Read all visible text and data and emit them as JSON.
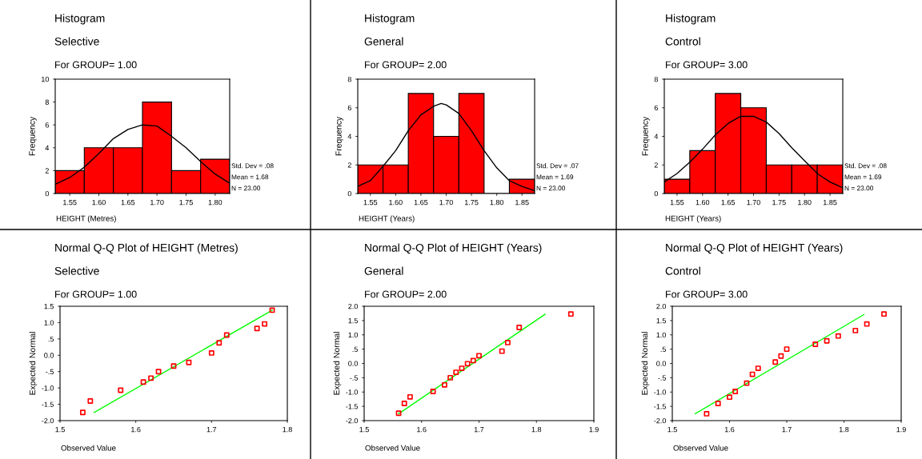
{
  "chart_data": [
    {
      "type": "histogram",
      "title": "Histogram",
      "subtitle": "Selective",
      "xlabel": "HEIGHT (Metres)",
      "ylabel": "Frequency",
      "annotations": [
        "For GROUP= 1.00",
        "Std. Dev = .08",
        "Mean = 1.68",
        "N = 23.00"
      ],
      "bins": [
        1.525,
        1.575,
        1.625,
        1.675,
        1.725,
        1.775,
        1.825
      ],
      "values": [
        2,
        4,
        4,
        8,
        2,
        3
      ],
      "color": "#ff0000",
      "series": [
        {
          "type": "line",
          "color": "#000000",
          "x": [
            1.525,
            1.55,
            1.575,
            1.6,
            1.625,
            1.65,
            1.675,
            1.7,
            1.725,
            1.75,
            1.775,
            1.8,
            1.825
          ],
          "values": [
            0.8,
            1.4,
            2.3,
            3.5,
            4.8,
            5.6,
            6.0,
            5.9,
            5.0,
            4.0,
            2.8,
            1.7,
            0.9
          ]
        }
      ],
      "xlim": [
        1.525,
        1.825
      ],
      "xticks": [
        {
          "value": 1.55,
          "label": "1.55"
        },
        {
          "value": 1.6,
          "label": "1.60"
        },
        {
          "value": 1.65,
          "label": "1.65"
        },
        {
          "value": 1.7,
          "label": "1.70"
        },
        {
          "value": 1.75,
          "label": "1.75"
        },
        {
          "value": 1.8,
          "label": "1.80"
        }
      ],
      "ylim": [
        0,
        10
      ],
      "yticks": [
        0,
        2,
        4,
        6,
        8,
        10
      ]
    },
    {
      "type": "histogram",
      "title": "Histogram",
      "subtitle": "General",
      "xlabel": "HEIGHT (Years)",
      "ylabel": "Frequency",
      "annotations": [
        "For GROUP= 2.00",
        "Std. Dev = .07",
        "Mean = 1.69",
        "N = 23.00"
      ],
      "bins": [
        1.525,
        1.575,
        1.625,
        1.675,
        1.725,
        1.775,
        1.825,
        1.875
      ],
      "values": [
        2,
        2,
        7,
        4,
        7,
        0,
        1
      ],
      "color": "#ff0000",
      "series": [
        {
          "type": "line",
          "color": "#000000",
          "x": [
            1.525,
            1.55,
            1.575,
            1.6,
            1.625,
            1.65,
            1.675,
            1.69,
            1.7,
            1.725,
            1.75,
            1.775,
            1.8,
            1.825,
            1.85,
            1.875
          ],
          "values": [
            0.5,
            0.9,
            1.9,
            3.0,
            4.4,
            5.5,
            6.1,
            6.3,
            6.2,
            5.6,
            4.4,
            3.0,
            1.8,
            0.9,
            0.5,
            0.2
          ]
        }
      ],
      "xlim": [
        1.525,
        1.875
      ],
      "xticks": [
        {
          "value": 1.55,
          "label": "1.55"
        },
        {
          "value": 1.6,
          "label": "1.60"
        },
        {
          "value": 1.65,
          "label": "1.65"
        },
        {
          "value": 1.7,
          "label": "1.70"
        },
        {
          "value": 1.75,
          "label": "1.75"
        },
        {
          "value": 1.8,
          "label": "1.80"
        },
        {
          "value": 1.85,
          "label": "1.85"
        }
      ],
      "ylim": [
        0,
        8
      ],
      "yticks": [
        0,
        2,
        4,
        6,
        8
      ]
    },
    {
      "type": "histogram",
      "title": "Histogram",
      "subtitle": "Control",
      "xlabel": "HEIGHT (Years)",
      "ylabel": "Frequency",
      "annotations": [
        "For GROUP= 3.00",
        "Std. Dev = .08",
        "Mean = 1.69",
        "N = 23.00"
      ],
      "bins": [
        1.525,
        1.575,
        1.625,
        1.675,
        1.725,
        1.775,
        1.825,
        1.875
      ],
      "values": [
        1,
        3,
        7,
        6,
        2,
        2,
        2
      ],
      "color": "#ff0000",
      "series": [
        {
          "type": "line",
          "color": "#000000",
          "x": [
            1.525,
            1.55,
            1.575,
            1.6,
            1.625,
            1.65,
            1.675,
            1.69,
            1.7,
            1.725,
            1.75,
            1.775,
            1.8,
            1.825,
            1.85,
            1.875
          ],
          "values": [
            0.8,
            1.4,
            2.2,
            3.1,
            4.1,
            4.9,
            5.4,
            5.4,
            5.4,
            5.0,
            4.2,
            3.2,
            2.3,
            1.4,
            0.8,
            0.4
          ]
        }
      ],
      "xlim": [
        1.525,
        1.875
      ],
      "xticks": [
        {
          "value": 1.55,
          "label": "1.55"
        },
        {
          "value": 1.6,
          "label": "1.60"
        },
        {
          "value": 1.65,
          "label": "1.65"
        },
        {
          "value": 1.7,
          "label": "1.70"
        },
        {
          "value": 1.75,
          "label": "1.75"
        },
        {
          "value": 1.8,
          "label": "1.80"
        },
        {
          "value": 1.85,
          "label": "1.85"
        }
      ],
      "ylim": [
        0,
        8
      ],
      "yticks": [
        0,
        2,
        4,
        6,
        8
      ]
    },
    {
      "type": "scatter",
      "title": "Normal Q-Q Plot of HEIGHT (Metres)",
      "subtitle": "Selective",
      "xlabel": "Observed Value",
      "ylabel": "Expected Normal",
      "annotations": [
        "For GROUP= 1.00"
      ],
      "series": [
        {
          "type": "scatter",
          "color": "#ff0000",
          "marker": "square",
          "x": [
            1.53,
            1.54,
            1.58,
            1.61,
            1.62,
            1.63,
            1.65,
            1.67,
            1.7,
            1.71,
            1.72,
            1.76,
            1.77,
            1.78
          ],
          "values": [
            -1.75,
            -1.4,
            -1.07,
            -0.82,
            -0.7,
            -0.5,
            -0.33,
            -0.22,
            0.07,
            0.38,
            0.62,
            0.82,
            0.96,
            1.38
          ]
        },
        {
          "type": "line",
          "color": "#00ff00",
          "x": [
            1.545,
            1.78
          ],
          "values": [
            -1.75,
            1.38
          ]
        }
      ],
      "xlim": [
        1.5,
        1.8
      ],
      "xticks": [
        {
          "value": 1.5,
          "label": "1.5"
        },
        {
          "value": 1.6,
          "label": "1.6"
        },
        {
          "value": 1.7,
          "label": "1.7"
        },
        {
          "value": 1.8,
          "label": "1.8"
        }
      ],
      "ylim": [
        -2.0,
        1.5
      ],
      "yticks": [
        {
          "value": -2.0,
          "label": "-2.0"
        },
        {
          "value": -1.5,
          "label": "-1.5"
        },
        {
          "value": -1.0,
          "label": "-1.0"
        },
        {
          "value": -0.5,
          "label": "-.5"
        },
        {
          "value": 0.0,
          "label": "0.0"
        },
        {
          "value": 0.5,
          "label": ".5"
        },
        {
          "value": 1.0,
          "label": "1.0"
        },
        {
          "value": 1.5,
          "label": "1.5"
        }
      ]
    },
    {
      "type": "scatter",
      "title": "Normal Q-Q Plot of HEIGHT (Years)",
      "subtitle": "General",
      "xlabel": "Observed Value",
      "ylabel": "Expected Normal",
      "annotations": [
        "For GROUP= 2.00"
      ],
      "series": [
        {
          "type": "scatter",
          "color": "#ff0000",
          "marker": "square",
          "x": [
            1.56,
            1.57,
            1.58,
            1.62,
            1.64,
            1.65,
            1.66,
            1.67,
            1.68,
            1.69,
            1.7,
            1.74,
            1.75,
            1.77,
            1.86
          ],
          "values": [
            -1.74,
            -1.4,
            -1.17,
            -0.98,
            -0.75,
            -0.5,
            -0.31,
            -0.17,
            -0.01,
            0.1,
            0.27,
            0.43,
            0.73,
            1.26,
            1.73
          ]
        },
        {
          "type": "line",
          "color": "#00ff00",
          "x": [
            1.56,
            1.815
          ],
          "values": [
            -1.76,
            1.72
          ]
        }
      ],
      "xlim": [
        1.5,
        1.9
      ],
      "xticks": [
        {
          "value": 1.5,
          "label": "1.5"
        },
        {
          "value": 1.6,
          "label": "1.6"
        },
        {
          "value": 1.7,
          "label": "1.7"
        },
        {
          "value": 1.8,
          "label": "1.8"
        },
        {
          "value": 1.9,
          "label": "1.9"
        }
      ],
      "ylim": [
        -2.0,
        2.0
      ],
      "yticks": [
        {
          "value": -2.0,
          "label": "-2.0"
        },
        {
          "value": -1.5,
          "label": "-1.5"
        },
        {
          "value": -1.0,
          "label": "-1.0"
        },
        {
          "value": -0.5,
          "label": "-.5"
        },
        {
          "value": 0.0,
          "label": "0.0"
        },
        {
          "value": 0.5,
          "label": ".5"
        },
        {
          "value": 1.0,
          "label": "1.0"
        },
        {
          "value": 1.5,
          "label": "1.5"
        },
        {
          "value": 2.0,
          "label": "2.0"
        }
      ]
    },
    {
      "type": "scatter",
      "title": "Normal Q-Q Plot of HEIGHT (Years)",
      "subtitle": "Control",
      "xlabel": "Observed Value",
      "ylabel": "Expected Normal",
      "annotations": [
        "For GROUP= 3.00"
      ],
      "series": [
        {
          "type": "scatter",
          "color": "#ff0000",
          "marker": "square",
          "x": [
            1.56,
            1.58,
            1.6,
            1.61,
            1.63,
            1.64,
            1.65,
            1.68,
            1.69,
            1.7,
            1.75,
            1.77,
            1.79,
            1.82,
            1.84,
            1.87
          ],
          "values": [
            -1.76,
            -1.4,
            -1.18,
            -0.98,
            -0.69,
            -0.38,
            -0.17,
            0.05,
            0.26,
            0.5,
            0.67,
            0.79,
            0.96,
            1.15,
            1.38,
            1.73
          ]
        },
        {
          "type": "line",
          "color": "#00ff00",
          "x": [
            1.54,
            1.835
          ],
          "values": [
            -1.76,
            1.71
          ]
        }
      ],
      "xlim": [
        1.5,
        1.9
      ],
      "xticks": [
        {
          "value": 1.5,
          "label": "1.5"
        },
        {
          "value": 1.6,
          "label": "1.6"
        },
        {
          "value": 1.7,
          "label": "1.7"
        },
        {
          "value": 1.8,
          "label": "1.8"
        },
        {
          "value": 1.9,
          "label": "1.9"
        }
      ],
      "ylim": [
        -2.0,
        2.0
      ],
      "yticks": [
        {
          "value": -2.0,
          "label": "-2.0"
        },
        {
          "value": -1.5,
          "label": "-1.5"
        },
        {
          "value": -1.0,
          "label": "-1.0"
        },
        {
          "value": -0.5,
          "label": "-.5"
        },
        {
          "value": 0.0,
          "label": "0.0"
        },
        {
          "value": 0.5,
          "label": ".5"
        },
        {
          "value": 1.0,
          "label": "1.0"
        },
        {
          "value": 1.5,
          "label": "1.5"
        },
        {
          "value": 2.0,
          "label": "2.0"
        }
      ]
    }
  ]
}
